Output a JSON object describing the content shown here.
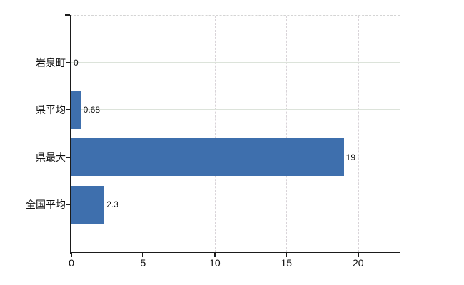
{
  "chart_data": {
    "type": "bar",
    "orientation": "horizontal",
    "title": "",
    "xlabel": "",
    "ylabel": "",
    "categories": [
      "岩泉町",
      "県平均",
      "県最大",
      "全国平均"
    ],
    "values": [
      0,
      0.68,
      19,
      2.3
    ],
    "value_labels": [
      "0",
      "0.68",
      "19",
      "2.3"
    ],
    "x_ticks": [
      0,
      5,
      10,
      15,
      20
    ],
    "x_tick_labels": [
      "0",
      "5",
      "10",
      "15",
      "20"
    ],
    "xlim": [
      0,
      22.9
    ],
    "grid": true,
    "legend": false,
    "bar_color": "#3e6fad",
    "axis_color": "#1b1b1b",
    "h_gridline_color": "#dce3da",
    "v_gridline_color": "#d8d3d8",
    "background_color": "#ffffff"
  }
}
